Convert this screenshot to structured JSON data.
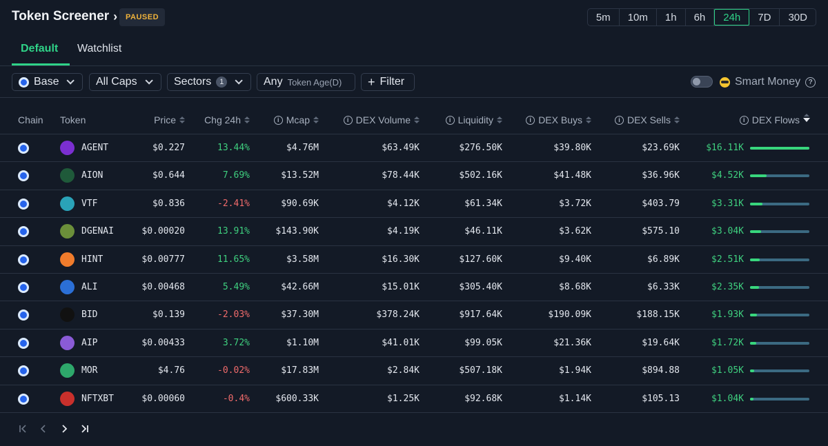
{
  "header": {
    "title": "Token Screener",
    "status_badge": "PAUSED",
    "timeframes": [
      "5m",
      "10m",
      "1h",
      "6h",
      "24h",
      "7D",
      "30D"
    ],
    "active_timeframe": "24h"
  },
  "tabs": [
    {
      "label": "Default",
      "active": true
    },
    {
      "label": "Watchlist",
      "active": false
    }
  ],
  "filters": {
    "chain": "Base",
    "caps": "All Caps",
    "sectors": "Sectors",
    "sectors_count": "1",
    "token_age_value": "Any",
    "token_age_label": "Token Age(D)",
    "filter_button": "Filter",
    "smart_money_label": "Smart Money",
    "smart_money_enabled": false
  },
  "columns": {
    "chain": "Chain",
    "token": "Token",
    "price": "Price",
    "chg": "Chg 24h",
    "mcap": "Mcap",
    "dex_volume": "DEX Volume",
    "liquidity": "Liquidity",
    "dex_buys": "DEX Buys",
    "dex_sells": "DEX Sells",
    "dex_flows": "DEX Flows"
  },
  "rows": [
    {
      "token": "AGENT",
      "price": "$0.227",
      "chg": "13.44%",
      "chg_dir": "pos",
      "mcap": "$4.76M",
      "dex_volume": "$63.49K",
      "liquidity": "$276.50K",
      "dex_buys": "$39.80K",
      "dex_sells": "$23.69K",
      "dex_flows": "$16.11K",
      "flow_fraction": 1.0,
      "icon_color": "#7b2fd1",
      "icon_name": "agent-token-icon"
    },
    {
      "token": "AION",
      "price": "$0.644",
      "chg": "7.69%",
      "chg_dir": "pos",
      "mcap": "$13.52M",
      "dex_volume": "$78.44K",
      "liquidity": "$502.16K",
      "dex_buys": "$41.48K",
      "dex_sells": "$36.96K",
      "dex_flows": "$4.52K",
      "flow_fraction": 0.28,
      "icon_color": "#1f5a3a",
      "icon_name": "aion-token-icon"
    },
    {
      "token": "VTF",
      "price": "$0.836",
      "chg": "-2.41%",
      "chg_dir": "neg",
      "mcap": "$90.69K",
      "dex_volume": "$4.12K",
      "liquidity": "$61.34K",
      "dex_buys": "$3.72K",
      "dex_sells": "$403.79",
      "dex_flows": "$3.31K",
      "flow_fraction": 0.21,
      "icon_color": "#2aa3b8",
      "icon_name": "vtf-token-icon"
    },
    {
      "token": "DGENAI",
      "price": "$0.00020",
      "chg": "13.91%",
      "chg_dir": "pos",
      "mcap": "$143.90K",
      "dex_volume": "$4.19K",
      "liquidity": "$46.11K",
      "dex_buys": "$3.62K",
      "dex_sells": "$575.10",
      "dex_flows": "$3.04K",
      "flow_fraction": 0.19,
      "icon_color": "#6b8f3a",
      "icon_name": "dgenai-token-icon"
    },
    {
      "token": "HINT",
      "price": "$0.00777",
      "chg": "11.65%",
      "chg_dir": "pos",
      "mcap": "$3.58M",
      "dex_volume": "$16.30K",
      "liquidity": "$127.60K",
      "dex_buys": "$9.40K",
      "dex_sells": "$6.89K",
      "dex_flows": "$2.51K",
      "flow_fraction": 0.16,
      "icon_color": "#f07c2c",
      "icon_name": "hint-token-icon"
    },
    {
      "token": "ALI",
      "price": "$0.00468",
      "chg": "5.49%",
      "chg_dir": "pos",
      "mcap": "$42.66M",
      "dex_volume": "$15.01K",
      "liquidity": "$305.40K",
      "dex_buys": "$8.68K",
      "dex_sells": "$6.33K",
      "dex_flows": "$2.35K",
      "flow_fraction": 0.15,
      "icon_color": "#2b6fd6",
      "icon_name": "ali-token-icon"
    },
    {
      "token": "BID",
      "price": "$0.139",
      "chg": "-2.03%",
      "chg_dir": "neg",
      "mcap": "$37.30M",
      "dex_volume": "$378.24K",
      "liquidity": "$917.64K",
      "dex_buys": "$190.09K",
      "dex_sells": "$188.15K",
      "dex_flows": "$1.93K",
      "flow_fraction": 0.12,
      "icon_color": "#111111",
      "icon_name": "bid-token-icon"
    },
    {
      "token": "AIP",
      "price": "$0.00433",
      "chg": "3.72%",
      "chg_dir": "pos",
      "mcap": "$1.10M",
      "dex_volume": "$41.01K",
      "liquidity": "$99.05K",
      "dex_buys": "$21.36K",
      "dex_sells": "$19.64K",
      "dex_flows": "$1.72K",
      "flow_fraction": 0.11,
      "icon_color": "#8a5bd6",
      "icon_name": "aip-token-icon"
    },
    {
      "token": "MOR",
      "price": "$4.76",
      "chg": "-0.02%",
      "chg_dir": "neg",
      "mcap": "$17.83M",
      "dex_volume": "$2.84K",
      "liquidity": "$507.18K",
      "dex_buys": "$1.94K",
      "dex_sells": "$894.88",
      "dex_flows": "$1.05K",
      "flow_fraction": 0.07,
      "icon_color": "#2ea86b",
      "icon_name": "mor-token-icon"
    },
    {
      "token": "NFTXBT",
      "price": "$0.00060",
      "chg": "-0.4%",
      "chg_dir": "neg",
      "mcap": "$600.33K",
      "dex_volume": "$1.25K",
      "liquidity": "$92.68K",
      "dex_buys": "$1.14K",
      "dex_sells": "$105.13",
      "dex_flows": "$1.04K",
      "flow_fraction": 0.06,
      "icon_color": "#c9302c",
      "icon_name": "nftxbt-token-icon"
    }
  ],
  "colors": {
    "accent": "#2fd388",
    "positive": "#3fd07f",
    "negative": "#f06b6b",
    "paused": "#f0b33b",
    "background": "#131a26"
  }
}
